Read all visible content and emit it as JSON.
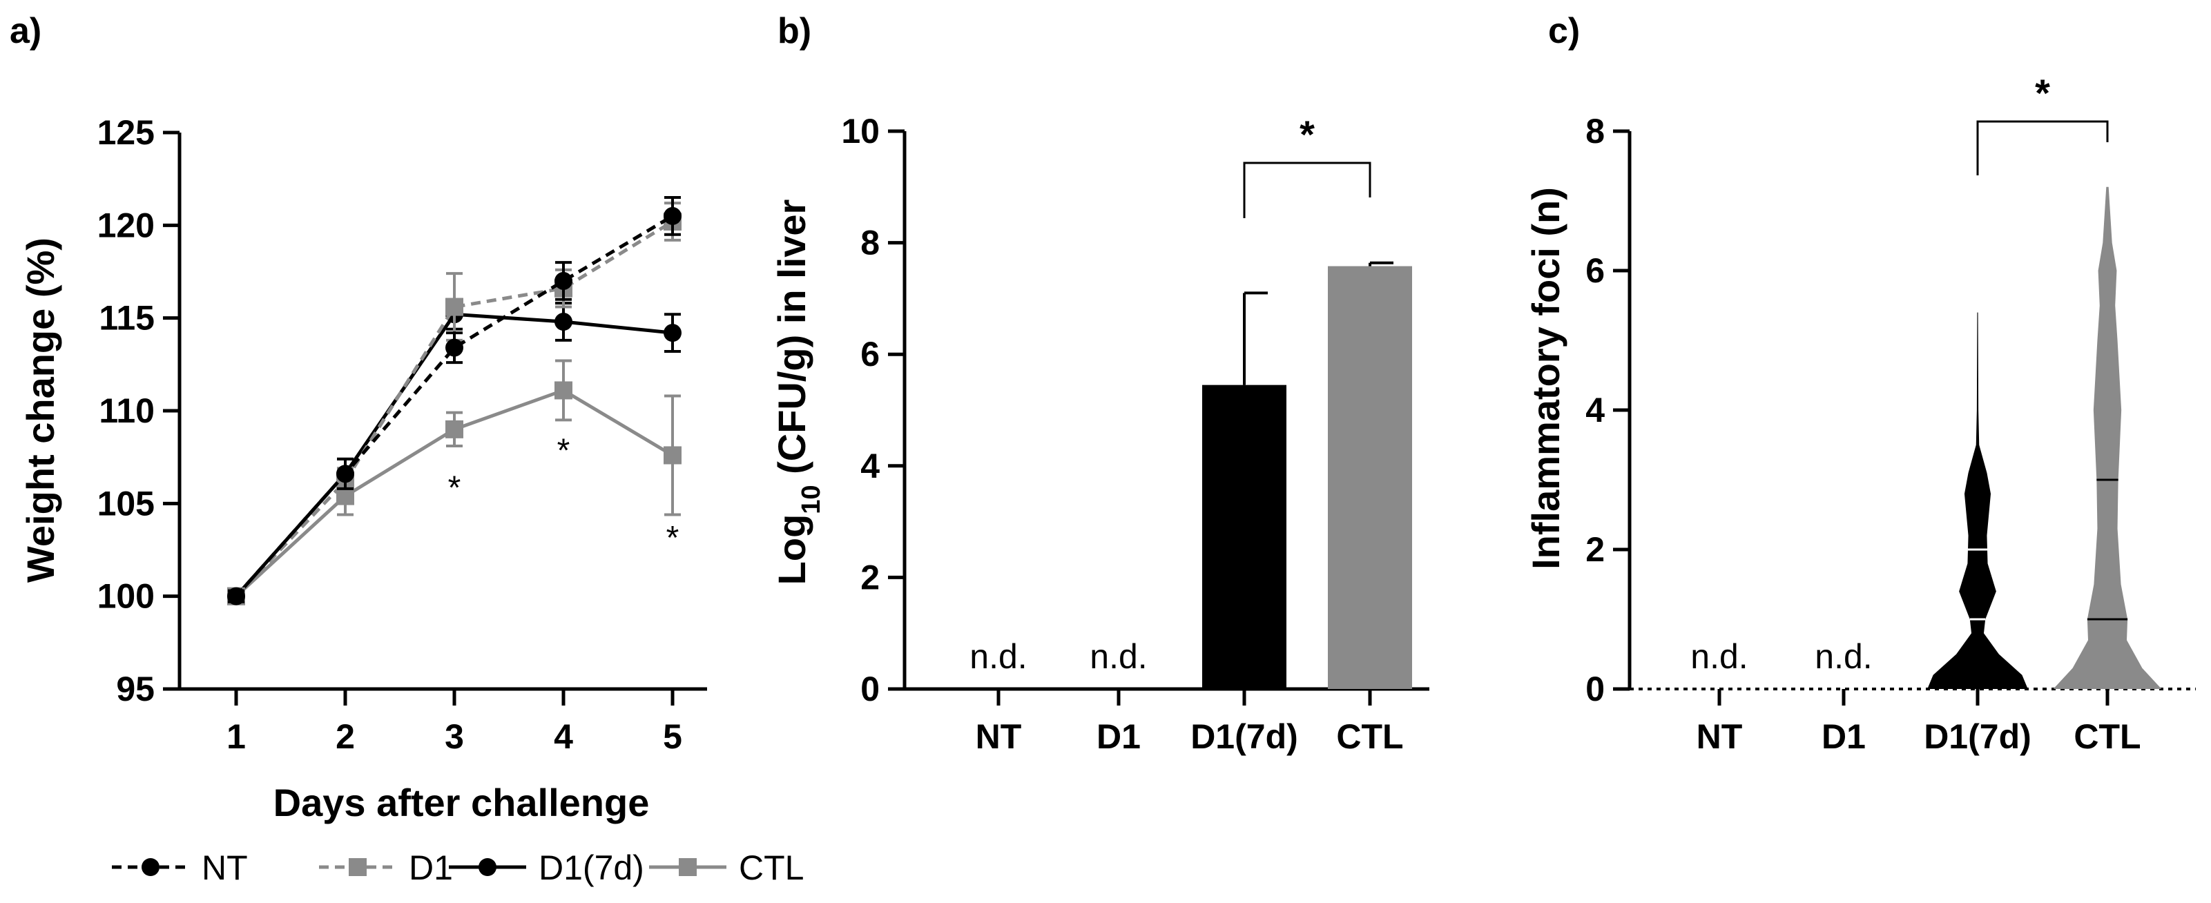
{
  "colors": {
    "black": "#000000",
    "gray": "#8a8a8a",
    "light_gray": "#a8a8a8"
  },
  "chart_data": [
    {
      "panel": "a)",
      "type": "line",
      "xlabel": "Days after challenge",
      "ylabel": "Weight change (%)",
      "x": [
        1,
        2,
        3,
        4,
        5
      ],
      "xticks": [
        "1",
        "2",
        "3",
        "4",
        "5"
      ],
      "ylim": [
        95,
        125
      ],
      "yticks": [
        "95",
        "100",
        "105",
        "110",
        "115",
        "120",
        "125"
      ],
      "series": [
        {
          "name": "NT",
          "marker": "circle",
          "line": "dashed",
          "color": "#000000",
          "values": [
            100,
            106.6,
            113.4,
            117.0,
            120.5
          ],
          "errors": [
            0.3,
            0.8,
            0.8,
            1.0,
            1.0
          ]
        },
        {
          "name": "D1",
          "marker": "square",
          "line": "dashed",
          "color": "#8a8a8a",
          "values": [
            100,
            106.2,
            115.6,
            116.6,
            120.2
          ],
          "errors": [
            0.3,
            0.7,
            1.8,
            1.0,
            1.0
          ]
        },
        {
          "name": "D1(7d)",
          "marker": "circle",
          "line": "solid",
          "color": "#000000",
          "values": [
            100,
            106.6,
            115.2,
            114.8,
            114.2
          ],
          "errors": [
            0.3,
            0.8,
            0.8,
            1.0,
            1.0
          ]
        },
        {
          "name": "CTL",
          "marker": "square",
          "line": "solid",
          "color": "#8a8a8a",
          "values": [
            100,
            105.4,
            109.0,
            111.1,
            107.6
          ],
          "errors": [
            0.3,
            1.0,
            0.9,
            1.6,
            3.2
          ]
        }
      ],
      "annotations": [
        {
          "text": "*",
          "x": 3,
          "y": 106.0
        },
        {
          "text": "*",
          "x": 4,
          "y": 108.0
        },
        {
          "text": "*",
          "x": 5,
          "y": 103.3
        }
      ],
      "legend": {
        "placement": "bottom",
        "entries": [
          "NT",
          "D1",
          "D1(7d)",
          "CTL"
        ]
      }
    },
    {
      "panel": "b)",
      "type": "bar",
      "ylabel": "Log10 (CFU/g) in liver",
      "ylabel_main": "Log",
      "ylabel_sub": "10",
      "ylabel_rest": " (CFU/g) in liver",
      "categories": [
        "NT",
        "D1",
        "D1(7d)",
        "CTL"
      ],
      "values": [
        null,
        null,
        5.45,
        7.58
      ],
      "errors": [
        null,
        null,
        1.65,
        0.06
      ],
      "colors": [
        "#000000",
        "#000000",
        "#000000",
        "#8a8a8a"
      ],
      "labels": [
        "n.d.",
        "n.d.",
        "",
        ""
      ],
      "ylim": [
        0,
        10
      ],
      "yticks": [
        "0",
        "2",
        "4",
        "6",
        "8",
        "10"
      ],
      "significance": {
        "from": "D1(7d)",
        "to": "CTL",
        "text": "*"
      }
    },
    {
      "panel": "c)",
      "type": "violin",
      "ylabel": "Inflammatory foci (n)",
      "categories": [
        "NT",
        "D1",
        "D1(7d)",
        "CTL"
      ],
      "labels": [
        "n.d.",
        "n.d.",
        "",
        ""
      ],
      "ylim": [
        0,
        8
      ],
      "yticks": [
        "0",
        "2",
        "4",
        "6",
        "8"
      ],
      "violins": [
        {
          "category": "D1(7d)",
          "color": "#000000",
          "max": 5.4,
          "profile": [
            [
              0,
              130
            ],
            [
              0.2,
              115
            ],
            [
              0.5,
              55
            ],
            [
              0.8,
              16
            ],
            [
              1.0,
              20
            ],
            [
              1.4,
              48
            ],
            [
              1.8,
              26
            ],
            [
              2.2,
              24
            ],
            [
              2.8,
              34
            ],
            [
              3.1,
              24
            ],
            [
              3.5,
              4
            ],
            [
              4.0,
              2
            ],
            [
              5.4,
              1
            ]
          ],
          "quartiles": [
            1,
            2
          ],
          "median": 1
        },
        {
          "category": "CTL",
          "color": "#8a8a8a",
          "max": 7.2,
          "profile": [
            [
              0,
              140
            ],
            [
              0.3,
              90
            ],
            [
              0.7,
              50
            ],
            [
              1.0,
              52
            ],
            [
              1.5,
              35
            ],
            [
              2.3,
              26
            ],
            [
              3.0,
              28
            ],
            [
              4.0,
              36
            ],
            [
              5.0,
              26
            ],
            [
              5.5,
              20
            ],
            [
              6.0,
              24
            ],
            [
              6.4,
              12
            ],
            [
              7.2,
              3
            ]
          ],
          "quartiles": [
            1,
            3
          ],
          "median": 1
        }
      ],
      "significance": {
        "from": "D1(7d)",
        "to": "CTL",
        "text": "*"
      }
    }
  ]
}
